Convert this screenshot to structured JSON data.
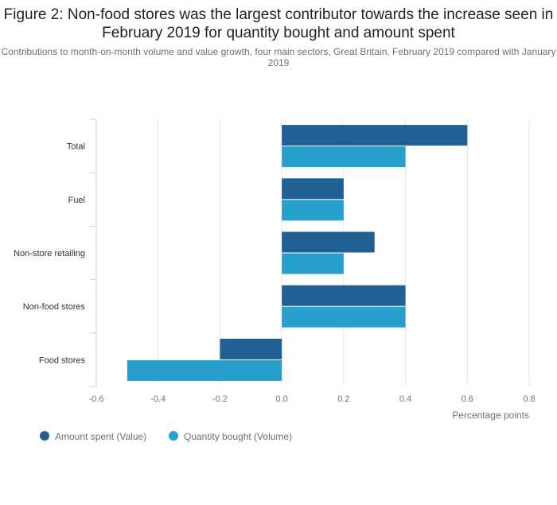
{
  "title": "Figure 2: Non-food stores was the largest contributor towards the increase seen in February 2019 for quantity bought and amount spent",
  "subtitle": "Contributions to month-on-month volume and value growth, four main sectors, Great Britain, February 2019 compared with January 2019",
  "colors": {
    "value": "#206095",
    "volume": "#27a0cc",
    "grid": "#e6e6e6",
    "axis": "#cccccc"
  },
  "chart_data": {
    "type": "bar",
    "orientation": "horizontal",
    "categories": [
      "Total",
      "Fuel",
      "Non-store retailing",
      "Non-food stores",
      "Food stores"
    ],
    "series": [
      {
        "name": "Amount spent (Value)",
        "values": [
          0.6,
          0.2,
          0.3,
          0.4,
          -0.2
        ]
      },
      {
        "name": "Quantity bought (Volume)",
        "values": [
          0.4,
          0.2,
          0.2,
          0.4,
          -0.5
        ]
      }
    ],
    "xlim": [
      -0.6,
      0.8
    ],
    "xticks": [
      "-0.6",
      "-0.4",
      "-0.2",
      "0.0",
      "0.2",
      "0.4",
      "0.6",
      "0.8"
    ],
    "xlabel": "Percentage points",
    "grid": true,
    "legend": "bottom-left"
  }
}
